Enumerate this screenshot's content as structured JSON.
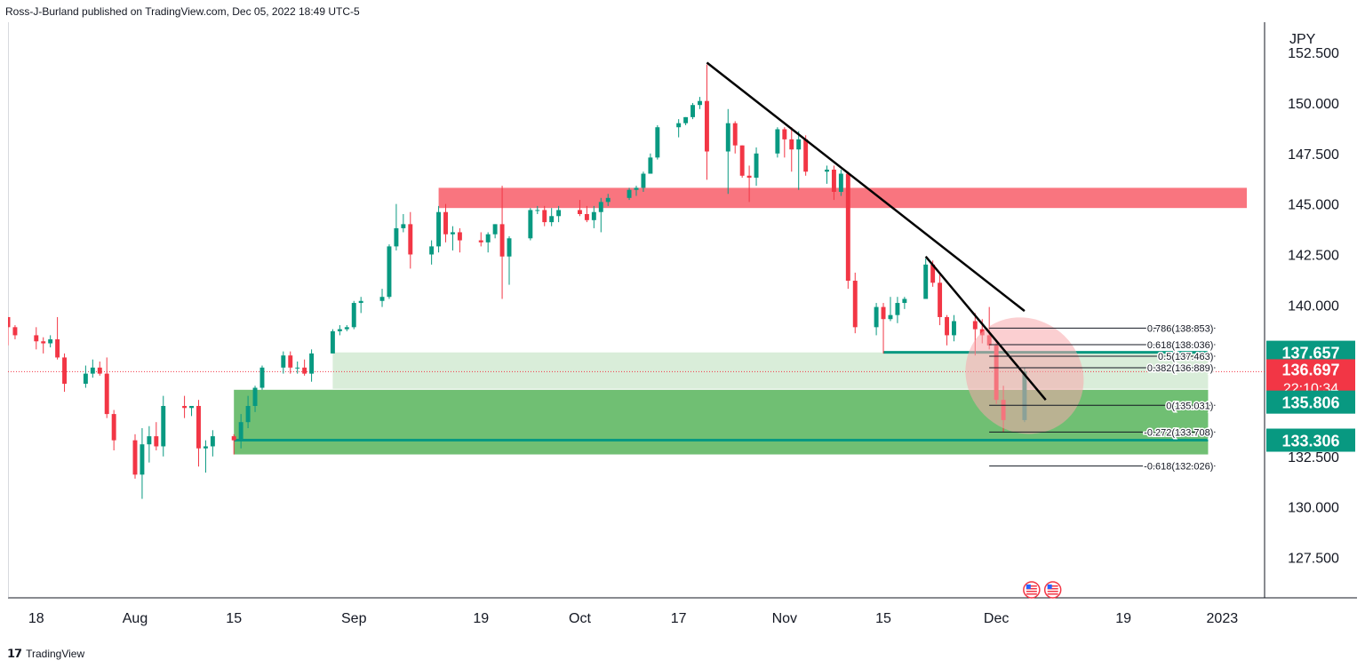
{
  "header": {
    "published_text": "Ross-J-Burland published on TradingView.com, Dec 05, 2022 18:49 UTC-5"
  },
  "footer": {
    "brand": "TradingView",
    "brand_icon": "tradingview-logo-icon"
  },
  "colors": {
    "bull": "#26a69a",
    "bull_dark": "#089981",
    "bear": "#f23645",
    "resistance_zone": "#f7525f",
    "support_zone": "#4caf50",
    "support_zone_light": "#b9dfba",
    "trendline": "#000000",
    "ellipse": "#f7a8ac",
    "fib_line": "#131722",
    "last_price_bg": "#f23645",
    "level_label_bg": "#089981",
    "axis_text": "#131722"
  },
  "chart_data": {
    "type": "candlestick",
    "symbol_currency": "JPY",
    "ylim": [
      125.5,
      154.0
    ],
    "y_ticks": [
      "152.500",
      "150.000",
      "147.500",
      "145.000",
      "142.500",
      "140.000",
      "132.500",
      "130.000",
      "127.500"
    ],
    "x_ticks": [
      "18",
      "Aug",
      "15",
      "Sep",
      "19",
      "Oct",
      "17",
      "Nov",
      "15",
      "Dec",
      "19",
      "2023"
    ],
    "x_tick_dates": [
      "2022-07-18",
      "2022-08-01",
      "2022-08-15",
      "2022-09-01",
      "2022-09-19",
      "2022-10-03",
      "2022-10-17",
      "2022-11-01",
      "2022-11-15",
      "2022-12-01",
      "2022-12-19",
      "2023-01-02"
    ],
    "x_range": [
      "2022-07-14",
      "2023-01-08"
    ],
    "candles": [
      {
        "d": "2022-07-14",
        "o": 139.4,
        "h": 139.4,
        "l": 138.0,
        "c": 138.9
      },
      {
        "d": "2022-07-15",
        "o": 138.9,
        "h": 139.0,
        "l": 138.3,
        "c": 138.5
      },
      {
        "d": "2022-07-18",
        "o": 138.5,
        "h": 138.9,
        "l": 137.8,
        "c": 138.2
      },
      {
        "d": "2022-07-19",
        "o": 138.2,
        "h": 138.4,
        "l": 137.6,
        "c": 138.1
      },
      {
        "d": "2022-07-20",
        "o": 138.1,
        "h": 138.5,
        "l": 137.9,
        "c": 138.3
      },
      {
        "d": "2022-07-21",
        "o": 138.3,
        "h": 139.4,
        "l": 137.3,
        "c": 137.4
      },
      {
        "d": "2022-07-22",
        "o": 137.4,
        "h": 137.6,
        "l": 135.7,
        "c": 136.1
      },
      {
        "d": "2022-07-25",
        "o": 136.1,
        "h": 137.0,
        "l": 135.9,
        "c": 136.6
      },
      {
        "d": "2022-07-26",
        "o": 136.6,
        "h": 137.3,
        "l": 136.4,
        "c": 136.9
      },
      {
        "d": "2022-07-27",
        "o": 136.9,
        "h": 137.2,
        "l": 136.5,
        "c": 136.6
      },
      {
        "d": "2022-07-28",
        "o": 136.6,
        "h": 137.4,
        "l": 134.4,
        "c": 134.6
      },
      {
        "d": "2022-07-29",
        "o": 134.6,
        "h": 134.8,
        "l": 132.8,
        "c": 133.3
      },
      {
        "d": "2022-08-01",
        "o": 133.3,
        "h": 133.6,
        "l": 131.4,
        "c": 131.6
      },
      {
        "d": "2022-08-02",
        "o": 131.6,
        "h": 133.9,
        "l": 130.4,
        "c": 133.1
      },
      {
        "d": "2022-08-03",
        "o": 133.1,
        "h": 134.0,
        "l": 132.2,
        "c": 133.5
      },
      {
        "d": "2022-08-04",
        "o": 133.5,
        "h": 134.2,
        "l": 132.8,
        "c": 133.0
      },
      {
        "d": "2022-08-05",
        "o": 133.0,
        "h": 135.5,
        "l": 132.5,
        "c": 135.0
      },
      {
        "d": "2022-08-08",
        "o": 135.0,
        "h": 135.5,
        "l": 134.4,
        "c": 134.9
      },
      {
        "d": "2022-08-09",
        "o": 134.9,
        "h": 135.0,
        "l": 134.5,
        "c": 135.0
      },
      {
        "d": "2022-08-10",
        "o": 135.0,
        "h": 135.3,
        "l": 132.0,
        "c": 132.9
      },
      {
        "d": "2022-08-11",
        "o": 132.9,
        "h": 133.3,
        "l": 131.7,
        "c": 133.0
      },
      {
        "d": "2022-08-12",
        "o": 133.0,
        "h": 133.8,
        "l": 132.5,
        "c": 133.5
      },
      {
        "d": "2022-08-15",
        "o": 133.5,
        "h": 133.6,
        "l": 132.6,
        "c": 133.3
      },
      {
        "d": "2022-08-16",
        "o": 133.3,
        "h": 134.6,
        "l": 132.9,
        "c": 134.2
      },
      {
        "d": "2022-08-17",
        "o": 134.2,
        "h": 135.5,
        "l": 133.9,
        "c": 135.0
      },
      {
        "d": "2022-08-18",
        "o": 135.0,
        "h": 136.0,
        "l": 134.7,
        "c": 135.9
      },
      {
        "d": "2022-08-19",
        "o": 135.9,
        "h": 137.0,
        "l": 135.8,
        "c": 136.9
      },
      {
        "d": "2022-08-22",
        "o": 136.9,
        "h": 137.7,
        "l": 136.6,
        "c": 137.5
      },
      {
        "d": "2022-08-23",
        "o": 137.5,
        "h": 137.7,
        "l": 136.6,
        "c": 136.9
      },
      {
        "d": "2022-08-24",
        "o": 136.9,
        "h": 137.2,
        "l": 136.6,
        "c": 136.9
      },
      {
        "d": "2022-08-25",
        "o": 136.9,
        "h": 137.3,
        "l": 136.5,
        "c": 136.6
      },
      {
        "d": "2022-08-26",
        "o": 136.6,
        "h": 137.8,
        "l": 136.2,
        "c": 137.6
      },
      {
        "d": "2022-08-29",
        "o": 137.6,
        "h": 138.8,
        "l": 137.6,
        "c": 138.7
      },
      {
        "d": "2022-08-30",
        "o": 138.7,
        "h": 139.0,
        "l": 138.5,
        "c": 138.8
      },
      {
        "d": "2022-08-31",
        "o": 138.8,
        "h": 139.0,
        "l": 138.7,
        "c": 138.9
      },
      {
        "d": "2022-09-01",
        "o": 138.9,
        "h": 140.2,
        "l": 138.8,
        "c": 140.1
      },
      {
        "d": "2022-09-02",
        "o": 140.1,
        "h": 140.4,
        "l": 139.6,
        "c": 140.2
      },
      {
        "d": "2022-09-05",
        "o": 140.2,
        "h": 140.8,
        "l": 139.9,
        "c": 140.4
      },
      {
        "d": "2022-09-06",
        "o": 140.4,
        "h": 143.0,
        "l": 140.3,
        "c": 142.9
      },
      {
        "d": "2022-09-07",
        "o": 142.9,
        "h": 145.0,
        "l": 142.7,
        "c": 143.8
      },
      {
        "d": "2022-09-08",
        "o": 143.8,
        "h": 144.5,
        "l": 143.6,
        "c": 144.0
      },
      {
        "d": "2022-09-09",
        "o": 144.0,
        "h": 144.6,
        "l": 141.8,
        "c": 142.5
      },
      {
        "d": "2022-09-12",
        "o": 142.5,
        "h": 143.2,
        "l": 142.0,
        "c": 142.9
      },
      {
        "d": "2022-09-13",
        "o": 142.9,
        "h": 144.9,
        "l": 142.6,
        "c": 144.6
      },
      {
        "d": "2022-09-14",
        "o": 144.6,
        "h": 145.0,
        "l": 143.1,
        "c": 143.5
      },
      {
        "d": "2022-09-15",
        "o": 143.5,
        "h": 143.9,
        "l": 142.7,
        "c": 143.6
      },
      {
        "d": "2022-09-16",
        "o": 143.6,
        "h": 143.8,
        "l": 142.6,
        "c": 143.2
      },
      {
        "d": "2022-09-19",
        "o": 143.2,
        "h": 143.6,
        "l": 142.9,
        "c": 143.1
      },
      {
        "d": "2022-09-20",
        "o": 143.1,
        "h": 143.6,
        "l": 142.6,
        "c": 143.5
      },
      {
        "d": "2022-09-21",
        "o": 143.5,
        "h": 144.0,
        "l": 143.3,
        "c": 144.0
      },
      {
        "d": "2022-09-22",
        "o": 144.0,
        "h": 145.9,
        "l": 140.3,
        "c": 142.4
      },
      {
        "d": "2022-09-23",
        "o": 142.4,
        "h": 143.4,
        "l": 141.0,
        "c": 143.3
      },
      {
        "d": "2022-09-26",
        "o": 143.3,
        "h": 144.8,
        "l": 143.2,
        "c": 144.7
      },
      {
        "d": "2022-09-27",
        "o": 144.7,
        "h": 144.9,
        "l": 144.5,
        "c": 144.7
      },
      {
        "d": "2022-09-28",
        "o": 144.7,
        "h": 144.9,
        "l": 143.9,
        "c": 144.1
      },
      {
        "d": "2022-09-29",
        "o": 144.1,
        "h": 144.8,
        "l": 143.9,
        "c": 144.4
      },
      {
        "d": "2022-09-30",
        "o": 144.4,
        "h": 144.9,
        "l": 144.1,
        "c": 144.7
      },
      {
        "d": "2022-10-03",
        "o": 144.7,
        "h": 145.2,
        "l": 144.4,
        "c": 144.5
      },
      {
        "d": "2022-10-04",
        "o": 144.5,
        "h": 144.9,
        "l": 144.1,
        "c": 144.2
      },
      {
        "d": "2022-10-05",
        "o": 144.2,
        "h": 144.9,
        "l": 143.8,
        "c": 144.6
      },
      {
        "d": "2022-10-06",
        "o": 144.6,
        "h": 145.3,
        "l": 143.6,
        "c": 145.1
      },
      {
        "d": "2022-10-07",
        "o": 145.1,
        "h": 145.5,
        "l": 144.9,
        "c": 145.3
      },
      {
        "d": "2022-10-10",
        "o": 145.3,
        "h": 145.8,
        "l": 145.2,
        "c": 145.7
      },
      {
        "d": "2022-10-11",
        "o": 145.7,
        "h": 145.9,
        "l": 145.4,
        "c": 145.8
      },
      {
        "d": "2022-10-12",
        "o": 145.8,
        "h": 146.6,
        "l": 145.6,
        "c": 146.5
      },
      {
        "d": "2022-10-13",
        "o": 146.5,
        "h": 147.5,
        "l": 146.5,
        "c": 147.3
      },
      {
        "d": "2022-10-14",
        "o": 147.3,
        "h": 148.9,
        "l": 147.2,
        "c": 148.8
      },
      {
        "d": "2022-10-17",
        "o": 148.8,
        "h": 149.2,
        "l": 148.3,
        "c": 149.0
      },
      {
        "d": "2022-10-18",
        "o": 149.0,
        "h": 149.3,
        "l": 148.9,
        "c": 149.3
      },
      {
        "d": "2022-10-19",
        "o": 149.3,
        "h": 150.0,
        "l": 149.2,
        "c": 149.9
      },
      {
        "d": "2022-10-20",
        "o": 149.9,
        "h": 150.3,
        "l": 149.7,
        "c": 150.1
      },
      {
        "d": "2022-10-21",
        "o": 150.1,
        "h": 151.9,
        "l": 146.2,
        "c": 147.6
      },
      {
        "d": "2022-10-24",
        "o": 147.6,
        "h": 149.7,
        "l": 145.5,
        "c": 149.0
      },
      {
        "d": "2022-10-25",
        "o": 149.0,
        "h": 149.1,
        "l": 147.5,
        "c": 147.9
      },
      {
        "d": "2022-10-26",
        "o": 147.9,
        "h": 147.9,
        "l": 146.3,
        "c": 146.4
      },
      {
        "d": "2022-10-27",
        "o": 146.4,
        "h": 146.9,
        "l": 145.1,
        "c": 146.3
      },
      {
        "d": "2022-10-28",
        "o": 146.3,
        "h": 147.8,
        "l": 145.9,
        "c": 147.5
      },
      {
        "d": "2022-10-31",
        "o": 147.5,
        "h": 148.8,
        "l": 147.3,
        "c": 148.7
      },
      {
        "d": "2022-11-01",
        "o": 148.7,
        "h": 148.8,
        "l": 147.3,
        "c": 148.2
      },
      {
        "d": "2022-11-02",
        "o": 148.2,
        "h": 148.8,
        "l": 146.6,
        "c": 147.7
      },
      {
        "d": "2022-11-03",
        "o": 147.7,
        "h": 148.6,
        "l": 145.7,
        "c": 148.2
      },
      {
        "d": "2022-11-04",
        "o": 148.2,
        "h": 148.4,
        "l": 146.4,
        "c": 146.6
      },
      {
        "d": "2022-11-07",
        "o": 146.6,
        "h": 146.9,
        "l": 146.0,
        "c": 146.7
      },
      {
        "d": "2022-11-08",
        "o": 146.7,
        "h": 146.9,
        "l": 145.2,
        "c": 145.6
      },
      {
        "d": "2022-11-09",
        "o": 145.6,
        "h": 146.7,
        "l": 145.4,
        "c": 146.5
      },
      {
        "d": "2022-11-10",
        "o": 146.5,
        "h": 146.6,
        "l": 140.8,
        "c": 141.2
      },
      {
        "d": "2022-11-11",
        "o": 141.2,
        "h": 141.6,
        "l": 138.6,
        "c": 138.9
      },
      {
        "d": "2022-11-14",
        "o": 138.9,
        "h": 140.1,
        "l": 138.5,
        "c": 139.9
      },
      {
        "d": "2022-11-15",
        "o": 139.9,
        "h": 140.1,
        "l": 137.6,
        "c": 139.3
      },
      {
        "d": "2022-11-16",
        "o": 139.3,
        "h": 140.4,
        "l": 139.2,
        "c": 139.5
      },
      {
        "d": "2022-11-17",
        "o": 139.5,
        "h": 140.4,
        "l": 139.1,
        "c": 140.1
      },
      {
        "d": "2022-11-18",
        "o": 140.1,
        "h": 140.4,
        "l": 139.8,
        "c": 140.3
      },
      {
        "d": "2022-11-21",
        "o": 140.3,
        "h": 142.3,
        "l": 140.3,
        "c": 142.0
      },
      {
        "d": "2022-11-22",
        "o": 142.0,
        "h": 142.2,
        "l": 140.9,
        "c": 141.1
      },
      {
        "d": "2022-11-23",
        "o": 141.1,
        "h": 141.5,
        "l": 139.0,
        "c": 139.4
      },
      {
        "d": "2022-11-24",
        "o": 139.4,
        "h": 139.5,
        "l": 138.0,
        "c": 138.5
      },
      {
        "d": "2022-11-25",
        "o": 138.5,
        "h": 139.5,
        "l": 138.2,
        "c": 139.2
      },
      {
        "d": "2022-11-28",
        "o": 139.2,
        "h": 139.6,
        "l": 137.5,
        "c": 138.8
      },
      {
        "d": "2022-11-29",
        "o": 138.8,
        "h": 139.3,
        "l": 138.1,
        "c": 138.5
      },
      {
        "d": "2022-11-30",
        "o": 138.5,
        "h": 139.9,
        "l": 137.8,
        "c": 138.0
      },
      {
        "d": "2022-12-01",
        "o": 138.0,
        "h": 138.2,
        "l": 135.1,
        "c": 135.3
      },
      {
        "d": "2022-12-02",
        "o": 135.3,
        "h": 136.0,
        "l": 133.7,
        "c": 134.3
      },
      {
        "d": "2022-12-05",
        "o": 134.3,
        "h": 136.9,
        "l": 134.2,
        "c": 136.7
      }
    ],
    "zones": [
      {
        "name": "resistance-zone",
        "from": "2022-09-13",
        "to": "2023-01-08",
        "y_top": 145.8,
        "y_bottom": 144.8,
        "color": "#f7525f"
      },
      {
        "name": "light-support-zone",
        "from": "2022-08-29",
        "to": "2022-12-31",
        "y_top": 137.65,
        "y_bottom": 135.85,
        "color": "#b9dfba"
      },
      {
        "name": "green-support-zone",
        "from": "2022-08-15",
        "to": "2022-12-31",
        "y_top": 135.8,
        "y_bottom": 132.6,
        "color": "#4caf50"
      }
    ],
    "horizontal_lines": [
      {
        "name": "support-line-133",
        "from": "2022-08-15",
        "to": "2022-12-31",
        "y": 133.306,
        "color": "#089981",
        "width": 3
      },
      {
        "name": "support-line-137",
        "from": "2022-11-15",
        "to": "2022-12-31",
        "y": 137.657,
        "color": "#089981",
        "width": 3
      }
    ],
    "trendlines": [
      {
        "name": "major-downtrend-line",
        "from": [
          "2022-10-21",
          152.0
        ],
        "to": [
          "2022-12-05",
          139.7
        ]
      },
      {
        "name": "minor-downtrend-line",
        "from": [
          "2022-11-21",
          142.4
        ],
        "to": [
          "2022-12-08",
          135.3
        ]
      }
    ],
    "highlight_ellipse": {
      "center": [
        "2022-12-05",
        136.5
      ],
      "rx_days": 8,
      "ry_price": 3.4,
      "rotation": 50
    },
    "fib_levels": [
      {
        "ratio": "0.786",
        "price": "138.853"
      },
      {
        "ratio": "0.618",
        "price": "138.036"
      },
      {
        "ratio": "0.5",
        "price": "137.463"
      },
      {
        "ratio": "0.382",
        "price": "136.889"
      },
      {
        "ratio": "0",
        "price": "135.031"
      },
      {
        "ratio": "-0.272",
        "price": "133.708"
      },
      {
        "ratio": "-0.618",
        "price": "132.026"
      }
    ],
    "fib_from": "2022-12-01",
    "fib_to": "2022-12-31",
    "price_labels": [
      {
        "name": "level-label-137",
        "value": "137.657",
        "type": "level"
      },
      {
        "name": "last-price-label",
        "value": "136.697",
        "countdown": "22:10:34",
        "type": "last"
      },
      {
        "name": "level-label-135",
        "value": "135.806",
        "type": "level"
      },
      {
        "name": "level-label-133",
        "value": "133.306",
        "type": "level"
      }
    ],
    "event_icons": [
      {
        "name": "us-flag-event-icon",
        "date": "2022-12-06"
      },
      {
        "name": "us-flag-event-icon",
        "date": "2022-12-09"
      }
    ],
    "grid": false,
    "legend": "none"
  }
}
